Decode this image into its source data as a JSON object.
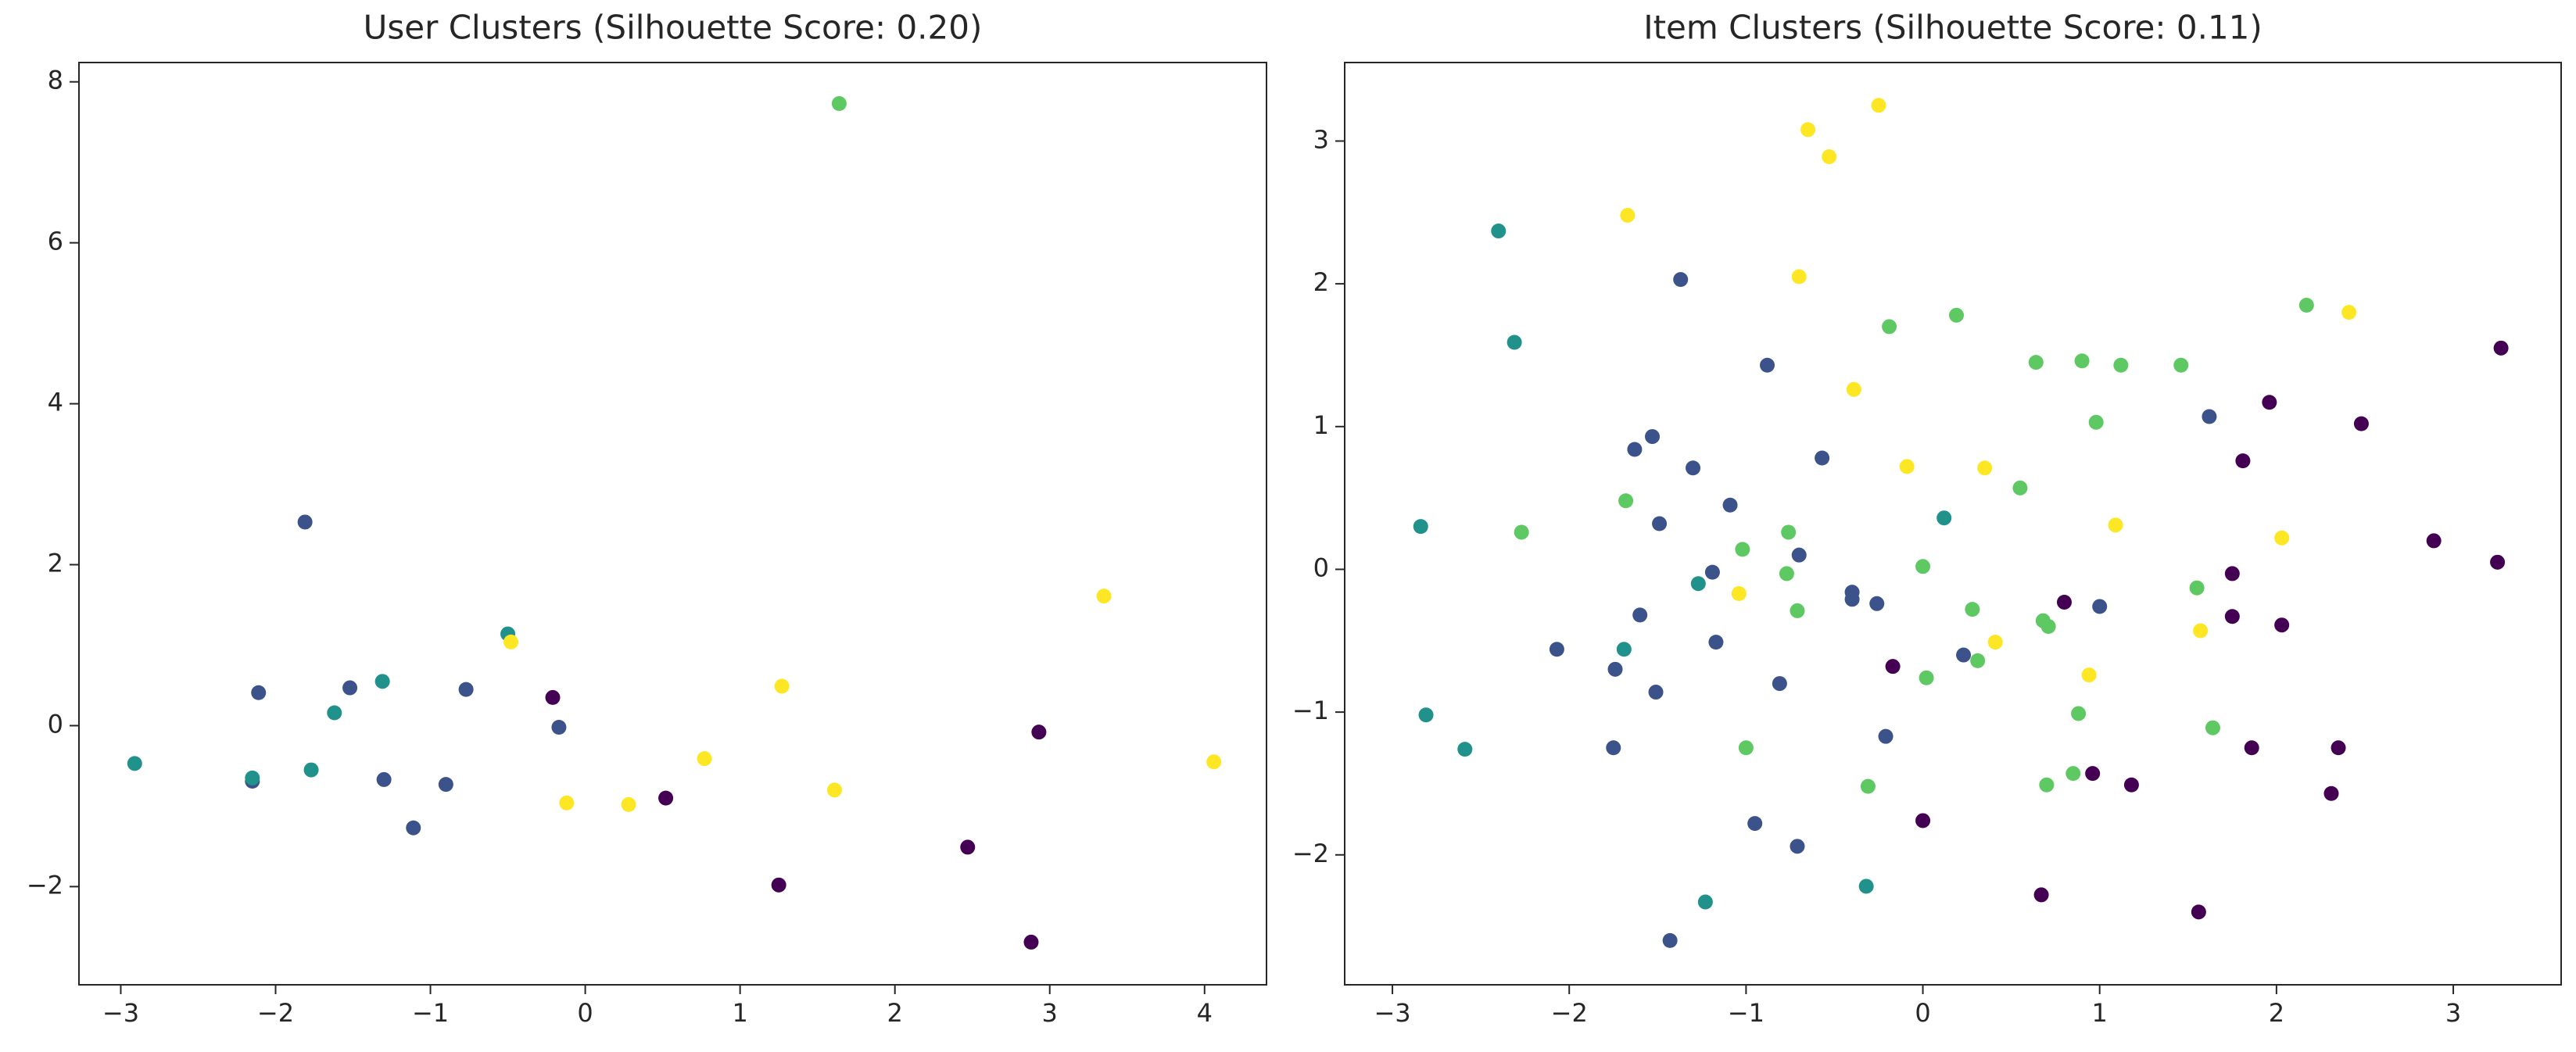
{
  "chart_data": [
    {
      "type": "scatter",
      "title": "User Clusters (Silhouette Score: 0.20)",
      "xlim": [
        -3.27,
        4.4
      ],
      "ylim": [
        -3.22,
        8.24
      ],
      "xticks": [
        {
          "value": -3,
          "label": "−3"
        },
        {
          "value": -2,
          "label": "−2"
        },
        {
          "value": -1,
          "label": "−1"
        },
        0,
        1,
        2,
        3,
        4
      ],
      "yticks": [
        {
          "value": -2,
          "label": "−2"
        },
        0,
        2,
        4,
        6,
        8
      ],
      "grid": false,
      "series": [
        {
          "color": "#440154",
          "x": [
            -0.21,
            0.52,
            1.25,
            2.47,
            2.93,
            2.88
          ],
          "values": [
            0.35,
            -0.9,
            -1.98,
            -1.51,
            -0.08,
            -2.69
          ]
        },
        {
          "color": "#3b528b",
          "x": [
            -2.15,
            -2.11,
            -1.81,
            -1.52,
            -1.3,
            -1.11,
            -0.9,
            -0.77,
            -0.17
          ],
          "values": [
            -0.69,
            0.41,
            2.53,
            0.47,
            -0.67,
            -1.27,
            -0.73,
            0.45,
            -0.02
          ]
        },
        {
          "color": "#21918c",
          "x": [
            -2.91,
            -2.15,
            -1.77,
            -1.62,
            -1.31,
            -0.5
          ],
          "values": [
            -0.47,
            -0.65,
            -0.55,
            0.16,
            0.55,
            1.14
          ]
        },
        {
          "color": "#5ec962",
          "x": [
            1.64
          ],
          "values": [
            7.73
          ]
        },
        {
          "color": "#fde725",
          "x": [
            -0.48,
            -0.12,
            0.28,
            0.77,
            1.27,
            1.61,
            3.35,
            4.06
          ],
          "values": [
            1.04,
            -0.96,
            -0.98,
            -0.41,
            0.49,
            -0.8,
            1.61,
            -0.45
          ]
        }
      ]
    },
    {
      "type": "scatter",
      "title": "Item Clusters (Silhouette Score: 0.11)",
      "xlim": [
        -3.27,
        3.61
      ],
      "ylim": [
        -2.91,
        3.55
      ],
      "xticks": [
        {
          "value": -3,
          "label": "−3"
        },
        {
          "value": -2,
          "label": "−2"
        },
        {
          "value": -1,
          "label": "−1"
        },
        0,
        1,
        2,
        3
      ],
      "yticks": [
        {
          "value": -2,
          "label": "−2"
        },
        {
          "value": -1,
          "label": "−1"
        },
        0,
        1,
        2,
        3
      ],
      "grid": false,
      "series": [
        {
          "color": "#440154",
          "x": [
            3.27,
            1.96,
            2.48,
            1.81,
            2.89,
            3.25,
            0.8,
            1.75,
            1.75,
            2.03,
            -0.17,
            0.0,
            0.96,
            1.18,
            1.86,
            2.35,
            2.31,
            0.67,
            1.56
          ],
          "values": [
            1.55,
            1.17,
            1.02,
            0.76,
            0.2,
            0.05,
            -0.23,
            -0.03,
            -0.33,
            -0.39,
            -0.68,
            -1.76,
            -1.43,
            -1.51,
            -1.25,
            -1.25,
            -1.57,
            -2.28,
            -2.4
          ]
        },
        {
          "color": "#3b528b",
          "x": [
            -1.37,
            -0.88,
            -0.57,
            -1.63,
            -1.53,
            -1.3,
            -1.09,
            -1.49,
            -0.7,
            -1.19,
            -0.4,
            -0.4,
            -0.26,
            -1.6,
            -1.17,
            -2.07,
            -1.74,
            -1.51,
            -0.81,
            1.0,
            0.23,
            -0.21,
            -1.75,
            -0.95,
            -0.71,
            -1.43,
            1.62
          ],
          "values": [
            2.03,
            1.43,
            0.78,
            0.84,
            0.93,
            0.71,
            0.45,
            0.32,
            0.1,
            -0.02,
            -0.16,
            -0.21,
            -0.24,
            -0.32,
            -0.51,
            -0.56,
            -0.7,
            -0.86,
            -0.8,
            -0.26,
            -0.6,
            -1.17,
            -1.25,
            -1.78,
            -1.94,
            -2.6,
            1.07
          ]
        },
        {
          "color": "#21918c",
          "x": [
            -2.4,
            -2.31,
            -2.84,
            -2.81,
            -2.59,
            -1.69,
            -1.27,
            -1.23,
            -0.32,
            0.12
          ],
          "values": [
            2.37,
            1.59,
            0.3,
            -1.02,
            -1.26,
            -0.56,
            -0.1,
            -2.33,
            -2.22,
            0.36
          ]
        },
        {
          "color": "#5ec962",
          "x": [
            -0.19,
            0.19,
            0.64,
            0.9,
            1.12,
            1.46,
            0.98,
            0.55,
            2.17,
            -1.68,
            -2.27,
            -1.02,
            -0.76,
            -0.77,
            -0.71,
            0.0,
            0.28,
            0.68,
            0.71,
            0.02,
            0.31,
            1.55,
            -1.0,
            -0.31,
            0.88,
            0.7,
            0.85,
            1.64
          ],
          "values": [
            1.7,
            1.78,
            1.45,
            1.46,
            1.43,
            1.43,
            1.03,
            0.57,
            1.85,
            0.48,
            0.26,
            0.14,
            0.26,
            -0.03,
            -0.29,
            0.02,
            -0.28,
            -0.36,
            -0.4,
            -0.76,
            -0.64,
            -0.13,
            -1.25,
            -1.52,
            -1.01,
            -1.51,
            -1.43,
            -1.11
          ]
        },
        {
          "color": "#fde725",
          "x": [
            -0.65,
            -0.25,
            -0.53,
            -1.67,
            -0.7,
            -0.39,
            -0.09,
            0.35,
            -1.04,
            0.41,
            0.94,
            1.09,
            1.57,
            2.03,
            2.41
          ],
          "values": [
            3.08,
            3.25,
            2.89,
            2.48,
            2.05,
            1.26,
            0.72,
            0.71,
            -0.17,
            -0.51,
            -0.74,
            0.31,
            -0.43,
            0.22,
            1.8
          ]
        }
      ]
    }
  ]
}
